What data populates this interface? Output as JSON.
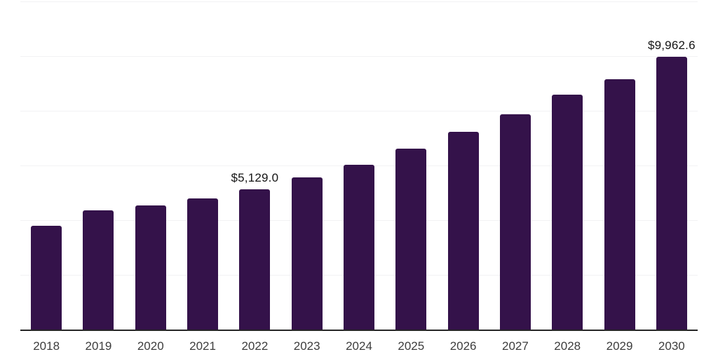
{
  "chart": {
    "background_color": "#FFFFFF",
    "bar_color": "#34124A",
    "gridline_color": "#F2F2F4",
    "axis_line_color": "#262626",
    "tick_label_color": "#3D3D3D",
    "value_label_color": "#141414"
  },
  "chart_data": {
    "type": "bar",
    "title": "",
    "xlabel": "",
    "ylabel": "",
    "categories": [
      "2018",
      "2019",
      "2020",
      "2021",
      "2022",
      "2023",
      "2024",
      "2025",
      "2026",
      "2027",
      "2028",
      "2029",
      "2030"
    ],
    "values": [
      3795,
      4360,
      4530,
      4790,
      5129.0,
      5570,
      6030,
      6610,
      7230,
      7870,
      8590,
      9160,
      9962.6
    ],
    "data_labels": [
      "",
      "",
      "",
      "",
      "$5,129.0",
      "",
      "",
      "",
      "",
      "",
      "",
      "",
      "$9,962.6"
    ],
    "ylim": [
      0,
      12000
    ],
    "gridline_step": 2000,
    "grid": "horizontal",
    "y_axis_tick_labels_visible": false,
    "legend_position": "none",
    "bar_corner_radius_px": 3
  }
}
